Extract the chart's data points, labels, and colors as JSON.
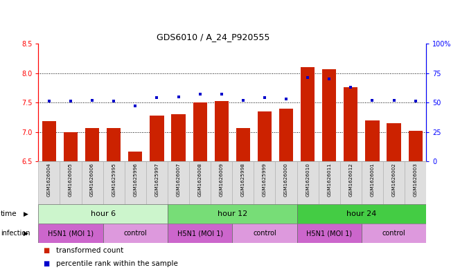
{
  "title": "GDS6010 / A_24_P920555",
  "samples": [
    "GSM1626004",
    "GSM1626005",
    "GSM1626006",
    "GSM1625995",
    "GSM1625996",
    "GSM1625997",
    "GSM1626007",
    "GSM1626008",
    "GSM1626009",
    "GSM1625998",
    "GSM1625999",
    "GSM1626000",
    "GSM1626010",
    "GSM1626011",
    "GSM1626012",
    "GSM1626001",
    "GSM1626002",
    "GSM1626003"
  ],
  "bar_values": [
    7.18,
    7.0,
    7.06,
    7.06,
    6.67,
    7.28,
    7.3,
    7.5,
    7.52,
    7.07,
    7.35,
    7.4,
    8.1,
    8.07,
    7.76,
    7.2,
    7.15,
    7.02
  ],
  "dot_values": [
    51,
    51,
    52,
    51,
    47,
    54,
    55,
    57,
    57,
    52,
    54,
    53,
    71,
    70,
    63,
    52,
    52,
    51
  ],
  "ylim_left": [
    6.5,
    8.5
  ],
  "ylim_right": [
    0,
    100
  ],
  "bar_color": "#cc2200",
  "dot_color": "#0000cc",
  "bar_bottom": 6.5,
  "yticks_left": [
    6.5,
    7.0,
    7.5,
    8.0,
    8.5
  ],
  "yticks_right": [
    0,
    25,
    50,
    75,
    100
  ],
  "ytick_labels_right": [
    "0",
    "25",
    "50",
    "75",
    "100%"
  ],
  "time_hour6_color": "#ccf5cc",
  "time_hour12_color": "#77dd77",
  "time_hour24_color": "#44cc44",
  "infection_h5n1_color": "#cc66cc",
  "infection_control_color": "#dd99dd",
  "time_groups": [
    {
      "label": "hour 6",
      "start": 0,
      "end": 6
    },
    {
      "label": "hour 12",
      "start": 6,
      "end": 12
    },
    {
      "label": "hour 24",
      "start": 12,
      "end": 18
    }
  ],
  "infection_groups": [
    {
      "label": "H5N1 (MOI 1)",
      "start": 0,
      "end": 3
    },
    {
      "label": "control",
      "start": 3,
      "end": 6
    },
    {
      "label": "H5N1 (MOI 1)",
      "start": 6,
      "end": 9
    },
    {
      "label": "control",
      "start": 9,
      "end": 12
    },
    {
      "label": "H5N1 (MOI 1)",
      "start": 12,
      "end": 15
    },
    {
      "label": "control",
      "start": 15,
      "end": 18
    }
  ]
}
